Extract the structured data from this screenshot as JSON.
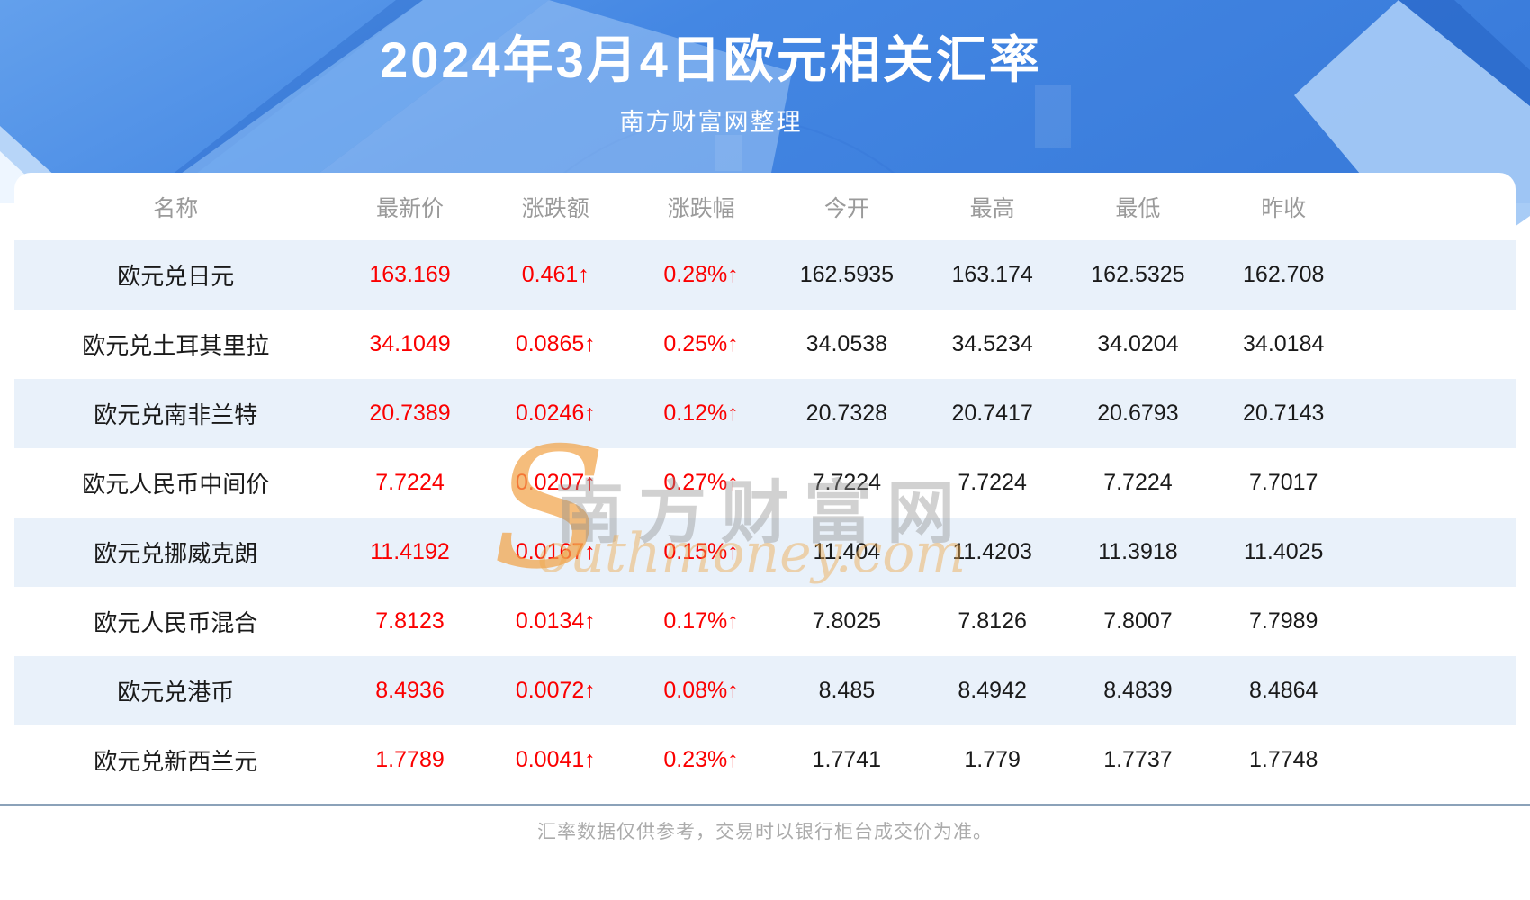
{
  "header": {
    "title": "2024年3月4日欧元相关汇率",
    "subtitle": "南方财富网整理"
  },
  "table": {
    "columns": [
      "名称",
      "最新价",
      "涨跌额",
      "涨跌幅",
      "今开",
      "最高",
      "最低",
      "昨收"
    ],
    "rows": [
      {
        "name": "欧元兑日元",
        "last": "163.169",
        "change": "0.461↑",
        "change_pct": "0.28%↑",
        "open": "162.5935",
        "high": "163.174",
        "low": "162.5325",
        "prev_close": "162.708"
      },
      {
        "name": "欧元兑土耳其里拉",
        "last": "34.1049",
        "change": "0.0865↑",
        "change_pct": "0.25%↑",
        "open": "34.0538",
        "high": "34.5234",
        "low": "34.0204",
        "prev_close": "34.0184"
      },
      {
        "name": "欧元兑南非兰特",
        "last": "20.7389",
        "change": "0.0246↑",
        "change_pct": "0.12%↑",
        "open": "20.7328",
        "high": "20.7417",
        "low": "20.6793",
        "prev_close": "20.7143"
      },
      {
        "name": "欧元人民币中间价",
        "last": "7.7224",
        "change": "0.0207↑",
        "change_pct": "0.27%↑",
        "open": "7.7224",
        "high": "7.7224",
        "low": "7.7224",
        "prev_close": "7.7017"
      },
      {
        "name": "欧元兑挪威克朗",
        "last": "11.4192",
        "change": "0.0167↑",
        "change_pct": "0.15%↑",
        "open": "11.404",
        "high": "11.4203",
        "low": "11.3918",
        "prev_close": "11.4025"
      },
      {
        "name": "欧元人民币混合",
        "last": "7.8123",
        "change": "0.0134↑",
        "change_pct": "0.17%↑",
        "open": "7.8025",
        "high": "7.8126",
        "low": "7.8007",
        "prev_close": "7.7989"
      },
      {
        "name": "欧元兑港币",
        "last": "8.4936",
        "change": "0.0072↑",
        "change_pct": "0.08%↑",
        "open": "8.485",
        "high": "8.4942",
        "low": "8.4839",
        "prev_close": "8.4864"
      },
      {
        "name": "欧元兑新西兰元",
        "last": "1.7789",
        "change": "0.0041↑",
        "change_pct": "0.23%↑",
        "open": "1.7741",
        "high": "1.779",
        "low": "1.7737",
        "prev_close": "1.7748"
      }
    ]
  },
  "watermark": {
    "initial": "S",
    "cn": "南方财富网",
    "en": "outhmoney.com"
  },
  "footer": {
    "note": "汇率数据仅供参考，交易时以银行柜台成交价为准。"
  },
  "colors": {
    "accent_red": "#fb0000",
    "stripe_blue": "#e9f1fa",
    "header_blue": "#4487e3",
    "text_dark": "#1a1a1a",
    "header_text_gray": "#9a9a9a",
    "divider_gray_blue": "#8ba2b9",
    "watermark_orange": "#f2a44a"
  }
}
